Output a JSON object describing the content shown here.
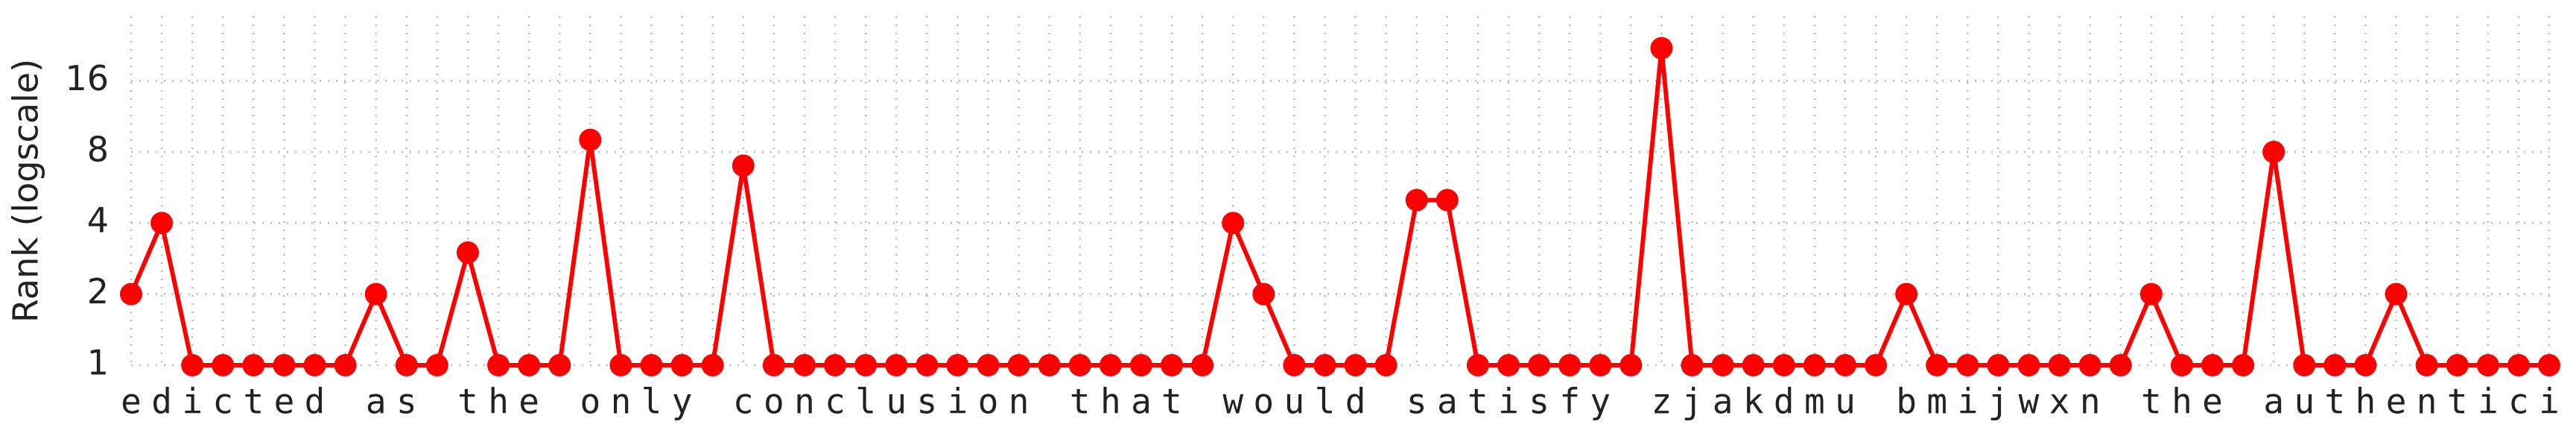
{
  "chart_data": {
    "type": "line",
    "ylabel": "Rank (logscale)",
    "categories": [
      "e",
      "d",
      "i",
      "c",
      "t",
      "e",
      "d",
      " ",
      "a",
      "s",
      " ",
      "t",
      "h",
      "e",
      " ",
      "o",
      "n",
      "l",
      "y",
      " ",
      "c",
      "o",
      "n",
      "c",
      "l",
      "u",
      "s",
      "i",
      "o",
      "n",
      " ",
      "t",
      "h",
      "a",
      "t",
      " ",
      "w",
      "o",
      "u",
      "l",
      "d",
      " ",
      "s",
      "a",
      "t",
      "i",
      "s",
      "f",
      "y",
      " ",
      "z",
      "j",
      "a",
      "k",
      "d",
      "m",
      "u",
      " ",
      "b",
      "m",
      "i",
      "j",
      "w",
      "x",
      "n",
      " ",
      "t",
      "h",
      "e",
      " ",
      "a",
      "u",
      "t",
      "h",
      "e",
      "n",
      "t",
      "i",
      "c",
      "i"
    ],
    "series": [
      {
        "name": "rank",
        "color": "#ff0000",
        "values": [
          2,
          4,
          1,
          1,
          1,
          1,
          1,
          1,
          2,
          1,
          1,
          3,
          1,
          1,
          1,
          9,
          1,
          1,
          1,
          1,
          7,
          1,
          1,
          1,
          1,
          1,
          1,
          1,
          1,
          1,
          1,
          1,
          1,
          1,
          1,
          1,
          4,
          2,
          1,
          1,
          1,
          1,
          5,
          5,
          1,
          1,
          1,
          1,
          1,
          1,
          22,
          1,
          1,
          1,
          1,
          1,
          1,
          1,
          2,
          1,
          1,
          1,
          1,
          1,
          1,
          1,
          2,
          1,
          1,
          1,
          8,
          1,
          1,
          1,
          2,
          1,
          1,
          1,
          1,
          1
        ]
      }
    ],
    "ylim": [
      1,
      30
    ],
    "yticks": [
      1,
      2,
      4,
      8,
      16
    ],
    "log_y": true,
    "grid": true
  }
}
